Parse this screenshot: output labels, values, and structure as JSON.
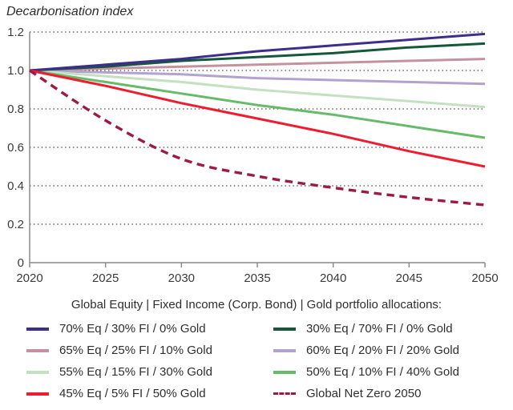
{
  "title": "Decarbonisation index",
  "legend": {
    "header": "Global Equity | Fixed Income (Corp. Bond) | Gold portfolio allocations:"
  },
  "chart_data": {
    "type": "line",
    "title": "Decarbonisation index",
    "xlabel": "",
    "ylabel": "Decarbonisation index",
    "x": [
      2020,
      2025,
      2030,
      2035,
      2040,
      2045,
      2050
    ],
    "x_tick_labels": [
      "2020",
      "2025",
      "2030",
      "2035",
      "2040",
      "2045",
      "2050"
    ],
    "xlim": [
      2020,
      2050
    ],
    "ylim": [
      0,
      1.2
    ],
    "y_ticks": [
      0,
      0.2,
      0.4,
      0.6,
      0.8,
      1.0,
      1.2
    ],
    "grid": "horizontal dotted black",
    "legend_position": "below, two columns",
    "series": [
      {
        "name": "70% Eq / 30% FI / 0% Gold",
        "color": "#3d2d8f",
        "style": "solid",
        "values": [
          1.0,
          1.03,
          1.06,
          1.1,
          1.13,
          1.16,
          1.19
        ]
      },
      {
        "name": "30% Eq / 70% FI / 0% Gold",
        "color": "#15573a",
        "style": "solid",
        "values": [
          1.0,
          1.02,
          1.05,
          1.07,
          1.09,
          1.12,
          1.14
        ]
      },
      {
        "name": "65% Eq / 25% FI / 10% Gold",
        "color": "#c4929e",
        "style": "solid",
        "values": [
          1.0,
          1.01,
          1.02,
          1.03,
          1.04,
          1.05,
          1.06
        ]
      },
      {
        "name": "60% Eq / 20% FI / 20% Gold",
        "color": "#b2a2ce",
        "style": "solid",
        "values": [
          1.0,
          0.99,
          0.98,
          0.96,
          0.95,
          0.94,
          0.93
        ]
      },
      {
        "name": "55% Eq / 15% FI / 30% Gold",
        "color": "#c3e1c1",
        "style": "solid",
        "values": [
          1.0,
          0.97,
          0.94,
          0.9,
          0.87,
          0.84,
          0.81
        ]
      },
      {
        "name": "50% Eq / 10% FI / 40% Gold",
        "color": "#66bb6a",
        "style": "solid",
        "values": [
          1.0,
          0.94,
          0.88,
          0.82,
          0.77,
          0.71,
          0.65
        ]
      },
      {
        "name": "45% Eq / 5% FI / 50% Gold",
        "color": "#ee1c2e",
        "style": "solid",
        "values": [
          1.0,
          0.92,
          0.83,
          0.75,
          0.67,
          0.58,
          0.5
        ]
      },
      {
        "name": "Global Net Zero 2050",
        "color": "#9c1b42",
        "style": "dashed",
        "smooth": true,
        "values": [
          1.0,
          0.74,
          0.54,
          0.45,
          0.39,
          0.34,
          0.3
        ]
      }
    ]
  }
}
